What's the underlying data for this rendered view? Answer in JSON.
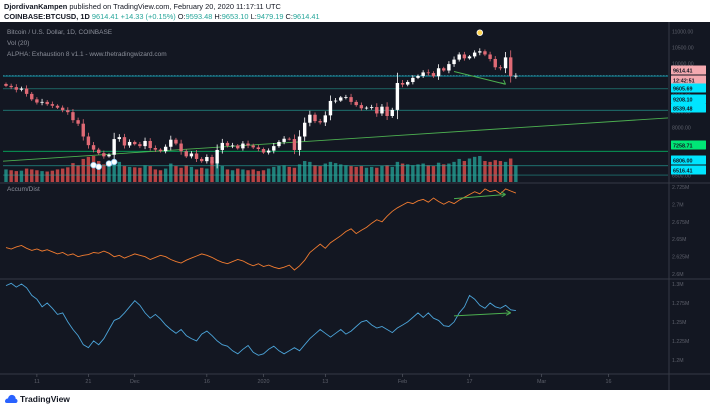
{
  "header": {
    "author": "DjordivanKampen",
    "published": "published on TradingView.com, February 20, 2020 11:17:11 UTC",
    "symbol": "COINBASE:BTCUSD, 1D",
    "last": "9614.41",
    "change": "+14.33 (+0.15%)",
    "o_label": "O:",
    "o": "9593.48",
    "h_label": "H:",
    "h": "9653.10",
    "l_label": "L:",
    "l": "9479.19",
    "c_label": "C:",
    "c": "9614.41"
  },
  "legend": {
    "title": "Bitcoin / U.S. Dollar, 1D, COINBASE",
    "vol": "Vol (20)",
    "alpha": "ALPHA: Exhaustion 8 v1.1 - www.thetradingwizard.com"
  },
  "panes": {
    "accum_title": "Accum/Dist"
  },
  "colors": {
    "background": "#131722",
    "up": "#ffffff",
    "down": "#e06a75",
    "volume_up": "#26a69a",
    "volume_down": "#ef5350",
    "accum_line": "#f07b30",
    "osc_line": "#4ba3d8",
    "trend": "#4caf50",
    "level_lines": "#26a69a",
    "price_tag_red": "#f4a9b0",
    "price_tag_teal": "#00e5ff",
    "price_tag_green": "#00e676"
  },
  "chart_data": [
    {
      "type": "candlestick",
      "title": "Bitcoin / U.S. Dollar, 1D, COINBASE",
      "ylim": [
        6300,
        11200
      ],
      "y_ticks": [
        "11000.00",
        "10500.00",
        "10000.00",
        "9500.00",
        "9000.00",
        "8500.00",
        "8000.00",
        "7500.00",
        "7000.00",
        "6500.00"
      ],
      "y_tick_values": [
        11000,
        10500,
        10000,
        9500,
        9000,
        8500,
        8000,
        7500,
        7000,
        6500
      ],
      "x_ticks": [
        "11",
        "21",
        "Dec",
        "16",
        "2020",
        "13",
        "Feb",
        "17",
        "Mar",
        "16"
      ],
      "x_tick_index": [
        6,
        16,
        25,
        39,
        50,
        62,
        77,
        90,
        104,
        117
      ],
      "closes": [
        9300,
        9260,
        9180,
        9220,
        9050,
        8880,
        8780,
        8800,
        8730,
        8680,
        8620,
        8540,
        8480,
        8230,
        8120,
        7720,
        7450,
        7310,
        7200,
        7100,
        7150,
        7640,
        7700,
        7440,
        7550,
        7480,
        7420,
        7580,
        7360,
        7310,
        7260,
        7400,
        7620,
        7500,
        7260,
        7100,
        7190,
        7020,
        6950,
        7080,
        6880,
        7300,
        7520,
        7430,
        7440,
        7350,
        7500,
        7440,
        7380,
        7330,
        7220,
        7280,
        7420,
        7550,
        7650,
        7640,
        7300,
        7720,
        8150,
        8400,
        8200,
        8160,
        8380,
        8830,
        8840,
        8940,
        8950,
        8800,
        8700,
        8600,
        8620,
        8640,
        8440,
        8650,
        8360,
        8550,
        9390,
        9340,
        9420,
        9550,
        9610,
        9720,
        9700,
        9600,
        9850,
        9780,
        9980,
        10120,
        10280,
        10160,
        10220,
        10340,
        10380,
        10280,
        10140,
        9880,
        9850,
        10190,
        9600,
        9614.41
      ],
      "volume": [
        30,
        28,
        26,
        27,
        32,
        30,
        28,
        26,
        25,
        27,
        30,
        32,
        35,
        45,
        40,
        55,
        60,
        62,
        50,
        42,
        45,
        50,
        48,
        38,
        36,
        35,
        34,
        40,
        38,
        30,
        28,
        32,
        44,
        38,
        34,
        40,
        36,
        30,
        34,
        32,
        50,
        45,
        38,
        30,
        28,
        32,
        30,
        28,
        30,
        26,
        28,
        32,
        36,
        38,
        40,
        36,
        34,
        42,
        50,
        48,
        40,
        38,
        44,
        48,
        45,
        42,
        40,
        38,
        36,
        38,
        34,
        36,
        34,
        38,
        40,
        36,
        48,
        44,
        42,
        40,
        42,
        44,
        40,
        38,
        46,
        42,
        44,
        48,
        55,
        50,
        56,
        60,
        62,
        50,
        48,
        52,
        50,
        48,
        56,
        40
      ],
      "level_tags": [
        "9614.41",
        "12:42:51",
        "9605.69",
        "9208.10",
        "8539.48",
        "7258.71",
        "6806.00",
        "6516.41"
      ],
      "level_values": [
        9614.41,
        9470,
        9605.69,
        9208.1,
        8539.48,
        7258.71,
        6806,
        6516.41
      ]
    },
    {
      "type": "line",
      "title": "Accum/Dist",
      "y_ticks": [
        "2.725M",
        "2.7M",
        "2.675M",
        "2.65M",
        "2.625M",
        "2.6M"
      ],
      "y_tick_values": [
        2.725,
        2.7,
        2.675,
        2.65,
        2.625,
        2.6
      ],
      "ylim": [
        2.596,
        2.729
      ],
      "values": [
        2.638,
        2.636,
        2.639,
        2.641,
        2.637,
        2.634,
        2.636,
        2.633,
        2.635,
        2.632,
        2.629,
        2.631,
        2.627,
        2.629,
        2.625,
        2.627,
        2.628,
        2.631,
        2.63,
        2.633,
        2.63,
        2.625,
        2.627,
        2.623,
        2.626,
        2.629,
        2.627,
        2.625,
        2.621,
        2.624,
        2.627,
        2.625,
        2.621,
        2.618,
        2.616,
        2.62,
        2.623,
        2.626,
        2.629,
        2.627,
        2.624,
        2.62,
        2.617,
        2.615,
        2.618,
        2.621,
        2.619,
        2.615,
        2.612,
        2.615,
        2.611,
        2.613,
        2.61,
        2.608,
        2.61,
        2.613,
        2.606,
        2.612,
        2.62,
        2.631,
        2.637,
        2.643,
        2.637,
        2.645,
        2.65,
        2.655,
        2.661,
        2.665,
        2.658,
        2.663,
        2.667,
        2.673,
        2.678,
        2.675,
        2.683,
        2.69,
        2.695,
        2.699,
        2.703,
        2.701,
        2.705,
        2.707,
        2.703,
        2.709,
        2.704,
        2.7,
        2.704,
        2.701,
        2.706,
        2.71,
        2.714,
        2.718,
        2.715,
        2.722,
        2.718,
        2.72,
        2.715,
        2.722,
        2.719,
        2.716
      ]
    },
    {
      "type": "line",
      "title": "",
      "y_ticks": [
        "1.3M",
        "1.275M",
        "1.25M",
        "1.225M",
        "1.2M"
      ],
      "y_tick_values": [
        1.3,
        1.275,
        1.25,
        1.225,
        1.2
      ],
      "ylim": [
        1.184,
        1.304
      ],
      "values": [
        1.298,
        1.301,
        1.296,
        1.3,
        1.295,
        1.285,
        1.28,
        1.27,
        1.275,
        1.268,
        1.26,
        1.262,
        1.25,
        1.24,
        1.232,
        1.22,
        1.216,
        1.225,
        1.22,
        1.228,
        1.24,
        1.252,
        1.255,
        1.262,
        1.27,
        1.278,
        1.272,
        1.262,
        1.255,
        1.26,
        1.254,
        1.246,
        1.24,
        1.235,
        1.24,
        1.232,
        1.228,
        1.225,
        1.234,
        1.238,
        1.232,
        1.225,
        1.22,
        1.218,
        1.212,
        1.208,
        1.214,
        1.219,
        1.21,
        1.206,
        1.208,
        1.214,
        1.218,
        1.212,
        1.208,
        1.212,
        1.216,
        1.212,
        1.22,
        1.228,
        1.234,
        1.24,
        1.235,
        1.23,
        1.235,
        1.24,
        1.234,
        1.238,
        1.244,
        1.25,
        1.252,
        1.246,
        1.242,
        1.244,
        1.24,
        1.236,
        1.242,
        1.246,
        1.25,
        1.256,
        1.262,
        1.256,
        1.262,
        1.255,
        1.252,
        1.245,
        1.244,
        1.25,
        1.262,
        1.27,
        1.285,
        1.28,
        1.272,
        1.268,
        1.275,
        1.27,
        1.268,
        1.272,
        1.266,
        1.265
      ]
    }
  ],
  "footer": {
    "brand": "TradingView"
  }
}
